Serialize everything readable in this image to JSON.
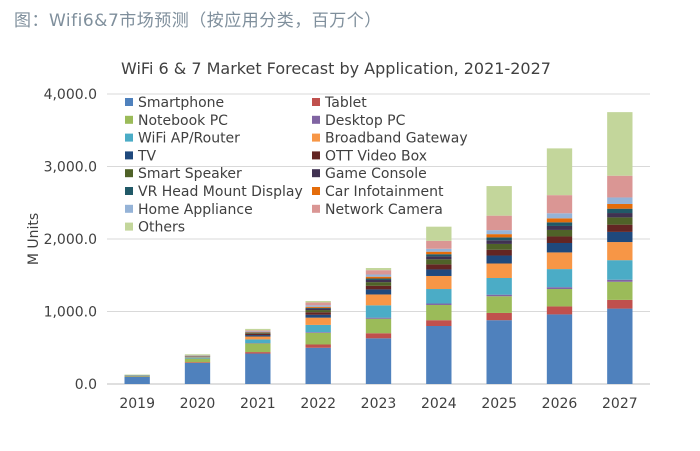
{
  "caption": "图：Wifi6&7市场预测（按应用分类，百万个）",
  "chart_data": {
    "type": "bar",
    "stacked": true,
    "title": "WiFi 6 & 7 Market Forecast by Application, 2021-2027",
    "xlabel": "",
    "ylabel": "M Units",
    "ylim": [
      0,
      4000
    ],
    "yticks": [
      "0.0",
      "1,000.0",
      "2,000.0",
      "3,000.0",
      "4,000.0"
    ],
    "ytick_values": [
      0,
      1000,
      2000,
      3000,
      4000
    ],
    "grid": true,
    "legend_position": "top-left",
    "categories": [
      "2019",
      "2020",
      "2021",
      "2022",
      "2023",
      "2024",
      "2025",
      "2026",
      "2027"
    ],
    "series": [
      {
        "name": "Smartphone",
        "color": "#4f81bd",
        "values": [
          100,
          290,
          420,
          500,
          630,
          800,
          880,
          960,
          1040
        ]
      },
      {
        "name": "Tablet",
        "color": "#c0504d",
        "values": [
          3,
          10,
          20,
          45,
          70,
          80,
          100,
          110,
          120
        ]
      },
      {
        "name": "Notebook PC",
        "color": "#9bbb59",
        "values": [
          10,
          50,
          120,
          160,
          200,
          210,
          230,
          240,
          250
        ]
      },
      {
        "name": "Desktop PC",
        "color": "#8064a2",
        "values": [
          0,
          2,
          5,
          10,
          15,
          20,
          22,
          25,
          28
        ]
      },
      {
        "name": "WiFi AP/Router",
        "color": "#4bacc6",
        "values": [
          5,
          15,
          50,
          100,
          170,
          200,
          230,
          250,
          270
        ]
      },
      {
        "name": "Broadband Gateway",
        "color": "#f79646",
        "values": [
          3,
          10,
          40,
          100,
          150,
          180,
          200,
          230,
          250
        ]
      },
      {
        "name": "TV",
        "color": "#1f497d",
        "values": [
          2,
          5,
          20,
          40,
          70,
          90,
          110,
          130,
          140
        ]
      },
      {
        "name": "OTT Video Box",
        "color": "#632523",
        "values": [
          1,
          3,
          15,
          35,
          50,
          70,
          80,
          90,
          100
        ]
      },
      {
        "name": "Smart Speaker",
        "color": "#4f6228",
        "values": [
          0,
          2,
          10,
          30,
          50,
          70,
          80,
          90,
          100
        ]
      },
      {
        "name": "Game Console",
        "color": "#403151",
        "values": [
          0,
          2,
          8,
          20,
          30,
          40,
          50,
          55,
          60
        ]
      },
      {
        "name": "VR Head Mount Display",
        "color": "#215967",
        "values": [
          0,
          1,
          4,
          10,
          20,
          30,
          40,
          50,
          60
        ]
      },
      {
        "name": "Car Infotainment",
        "color": "#e46c0a",
        "values": [
          0,
          1,
          5,
          15,
          25,
          35,
          45,
          55,
          65
        ]
      },
      {
        "name": "Home Appliance",
        "color": "#95b3d7",
        "values": [
          0,
          2,
          8,
          20,
          30,
          40,
          55,
          70,
          90
        ]
      },
      {
        "name": "Network Camera",
        "color": "#da9694",
        "values": [
          0,
          3,
          15,
          40,
          60,
          110,
          200,
          250,
          300
        ]
      },
      {
        "name": "Others",
        "color": "#c3d69b",
        "values": [
          6,
          14,
          20,
          20,
          30,
          195,
          408,
          645,
          877
        ]
      }
    ]
  }
}
